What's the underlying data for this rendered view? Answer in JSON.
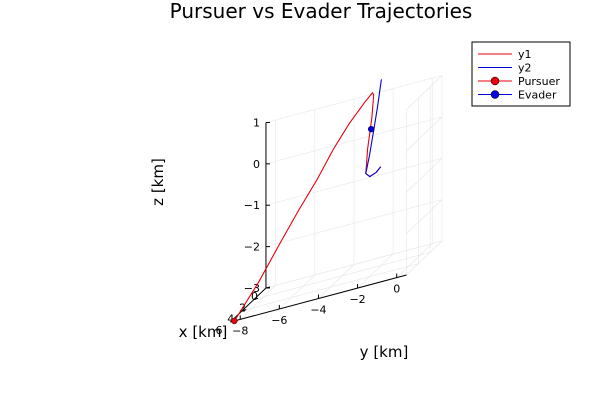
{
  "chart_data": {
    "type": "line",
    "title": "Pursuer vs Evader Trajectories",
    "projection": "3d",
    "xlabel": "x [km]",
    "ylabel": "y [km]",
    "zlabel": "z [km]",
    "x_ticks": [
      "0",
      "2",
      "4",
      "6"
    ],
    "y_ticks": [
      "−8",
      "−6",
      "−4",
      "−2",
      "0"
    ],
    "z_ticks": [
      "1",
      "0",
      "−1",
      "−2",
      "−3"
    ],
    "grid": true,
    "legend_position": "top-right",
    "series": [
      {
        "name": "y1",
        "color": "#e8000b",
        "points": [
          [
            6.0,
            -8.3,
            -3.0
          ],
          [
            5.2,
            -7.3,
            -2.3
          ],
          [
            4.3,
            -6.5,
            -1.6
          ],
          [
            3.4,
            -5.8,
            -1.0
          ],
          [
            2.6,
            -5.1,
            -0.45
          ],
          [
            1.8,
            -4.5,
            0.1
          ],
          [
            1.1,
            -3.9,
            0.55
          ],
          [
            0.5,
            -3.3,
            0.9
          ],
          [
            0.2,
            -3.0,
            1.05
          ],
          [
            0.3,
            -2.9,
            1.0
          ],
          [
            0.6,
            -2.9,
            0.5
          ],
          [
            1.0,
            -3.0,
            -0.2
          ],
          [
            1.3,
            -3.0,
            -0.75
          ],
          [
            1.3,
            -2.8,
            -0.85
          ],
          [
            1.2,
            -2.5,
            -0.8
          ],
          [
            1.1,
            -2.3,
            -0.7
          ]
        ]
      },
      {
        "name": "y2",
        "color": "#0000dd",
        "points": [
          [
            0.0,
            -2.6,
            1.3
          ],
          [
            0.3,
            -2.7,
            0.7
          ],
          [
            0.6,
            -2.8,
            0.2
          ],
          [
            1.0,
            -2.9,
            -0.35
          ],
          [
            1.3,
            -3.0,
            -0.75
          ],
          [
            1.3,
            -2.8,
            -0.85
          ],
          [
            1.2,
            -2.5,
            -0.8
          ],
          [
            1.1,
            -2.3,
            -0.7
          ]
        ]
      }
    ],
    "markers": [
      {
        "name": "Pursuer",
        "color": "#e8000b",
        "x": 6.0,
        "y": -8.3,
        "z": -3.0
      },
      {
        "name": "Evader",
        "color": "#0000dd",
        "x": 0.4,
        "y": -3.0,
        "z": 0.2
      }
    ]
  }
}
